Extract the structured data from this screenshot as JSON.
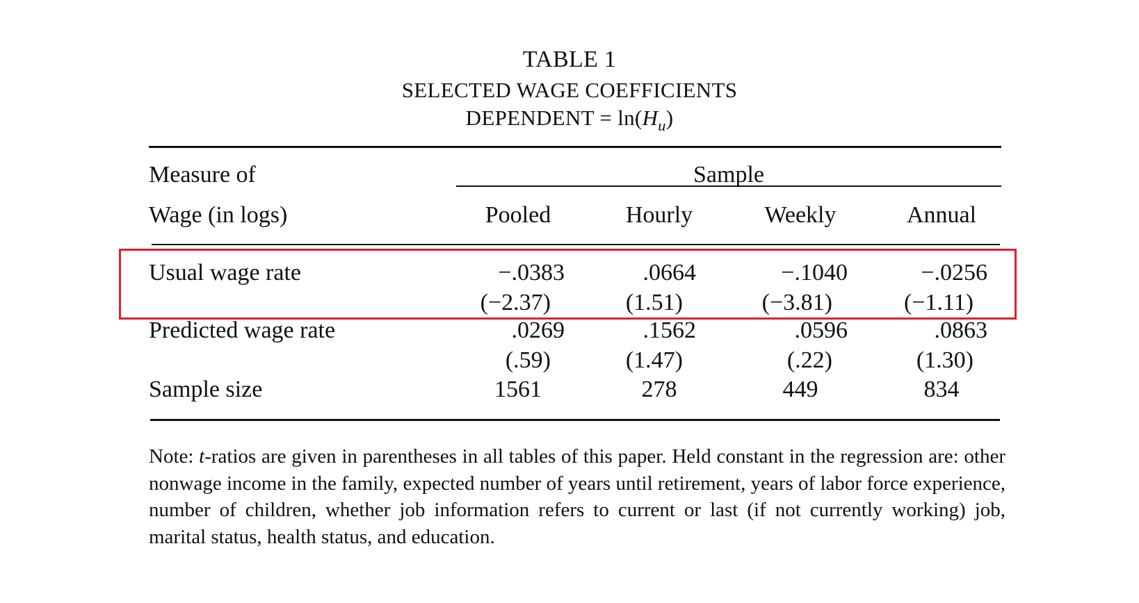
{
  "table": {
    "number": "TABLE 1",
    "title": "SELECTED WAGE COEFFICIENTS",
    "dependent_prefix": "DEPENDENT = ln(",
    "dependent_var": "H",
    "dependent_sub": "u",
    "dependent_suffix": ")",
    "stub_header_line1": "Measure of",
    "stub_header_line2": "Wage (in logs)",
    "spanner": "Sample",
    "columns": [
      "Pooled",
      "Hourly",
      "Weekly",
      "Annual"
    ],
    "rows": [
      {
        "label": "Usual wage rate",
        "coef": [
          "−.0383",
          ".0664",
          "−.1040",
          "−.0256"
        ],
        "tstat": [
          "(−2.37)",
          "(1.51)",
          "(−3.81)",
          "(−1.11)"
        ]
      },
      {
        "label": "Predicted wage rate",
        "coef": [
          ".0269",
          ".1562",
          ".0596",
          ".0863"
        ],
        "tstat": [
          "(.59)",
          "(1.47)",
          "(.22)",
          "(1.30)"
        ]
      },
      {
        "label": "Sample size",
        "values": [
          "1561",
          "278",
          "449",
          "834"
        ]
      }
    ],
    "highlight_color": "#e0202a"
  },
  "note": {
    "label": "Note: ",
    "t": "t",
    "text": "-ratios are given in parentheses in all tables of this paper. Held constant in the regression are: other nonwage income in the family, expected number of years until retirement, years of labor force experience, number of children, whether job information refers to current or last (if not currently working) job, marital status, health status, and education."
  }
}
